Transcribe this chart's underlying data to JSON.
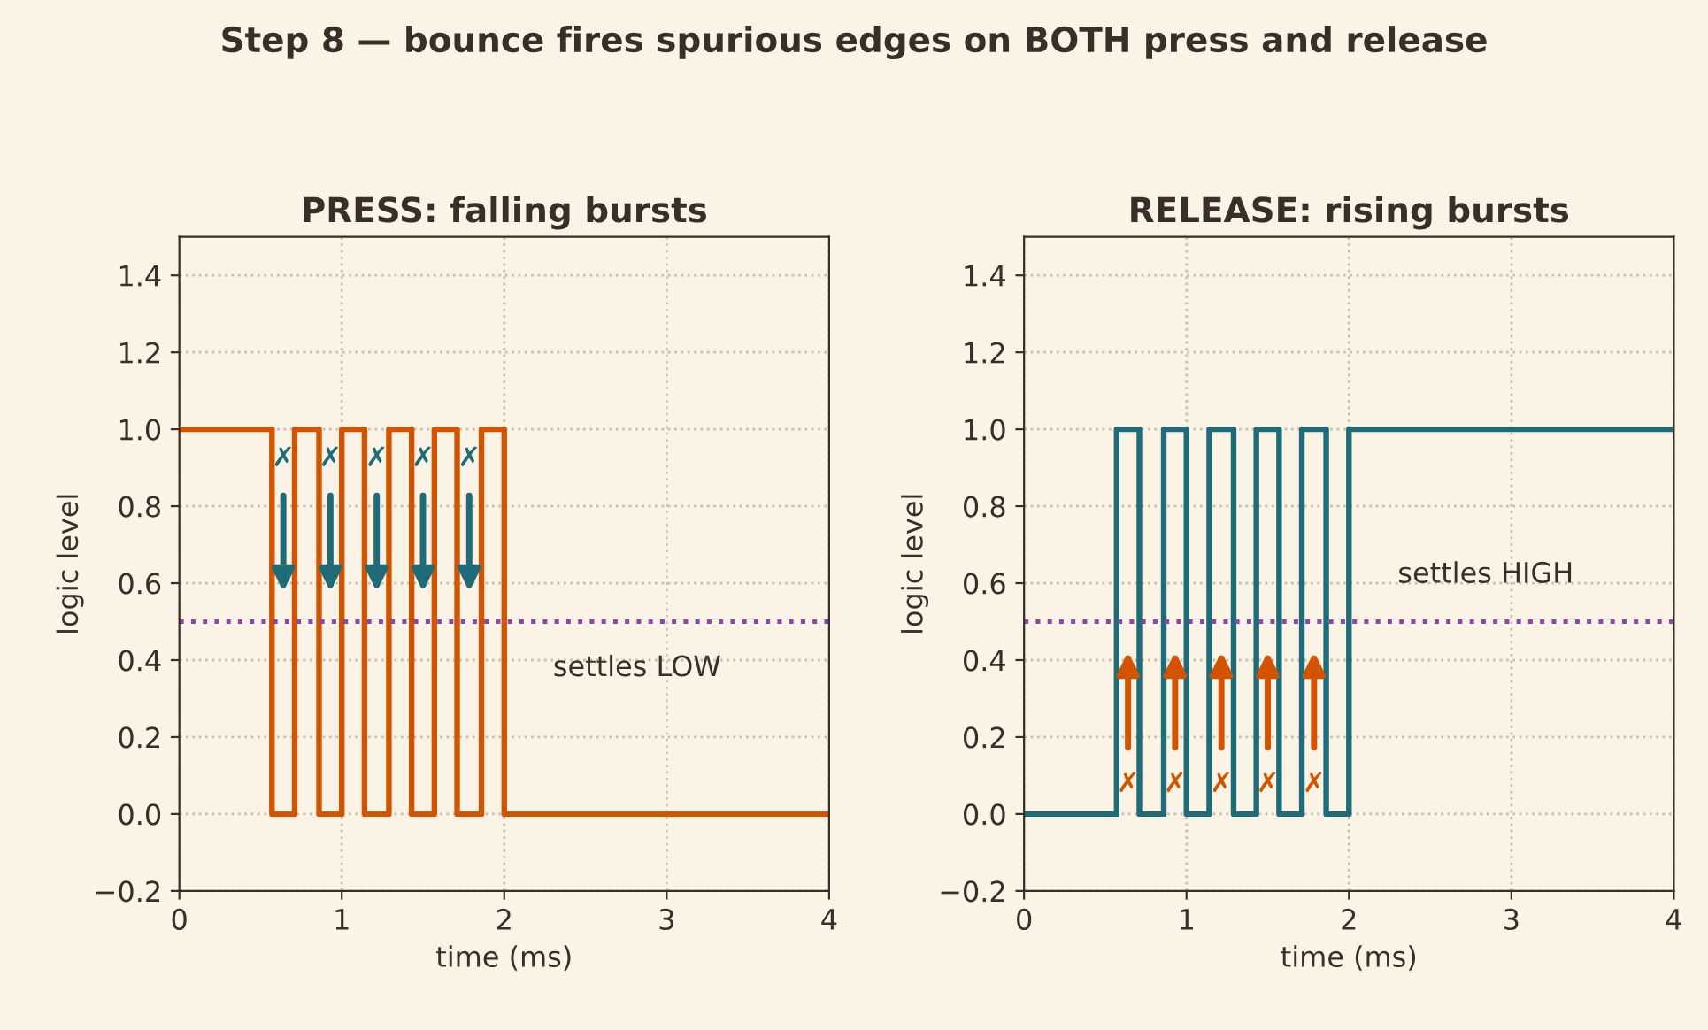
{
  "chart_data": [
    {
      "type": "step",
      "title": "PRESS: falling bursts",
      "xlabel": "time (ms)",
      "ylabel": "logic level",
      "series": [
        {
          "color": "#d35400",
          "x": [
            0,
            0.57,
            0.71,
            0.86,
            1.0,
            1.14,
            1.29,
            1.43,
            1.57,
            1.71,
            1.86,
            2.0,
            4
          ],
          "values": [
            1,
            0,
            1,
            0,
            1,
            0,
            1,
            0,
            1,
            0,
            1,
            0,
            0
          ]
        }
      ],
      "xlim": [
        0,
        4
      ],
      "ylim": [
        -0.2,
        1.5
      ],
      "xticks": [
        0,
        1,
        2,
        3,
        4
      ],
      "yticks": [
        {
          "value": -0.2,
          "label": "−0.2"
        },
        {
          "value": 0,
          "label": "0.0"
        },
        {
          "value": 0.2,
          "label": "0.2"
        },
        {
          "value": 0.4,
          "label": "0.4"
        },
        {
          "value": 0.6,
          "label": "0.6"
        },
        {
          "value": 0.8,
          "label": "0.8"
        },
        {
          "value": 1,
          "label": "1.0"
        },
        {
          "value": 1.2,
          "label": "1.2"
        },
        {
          "value": 1.4,
          "label": "1.4"
        }
      ],
      "grid": true,
      "ref_lines": [
        {
          "axis": "y",
          "value": 0.5,
          "color": "#8e44ad",
          "line_style": "dotted"
        }
      ],
      "annotations": [
        "✗",
        "✗",
        "✗",
        "✗",
        "✗",
        "settles LOW"
      ]
    },
    {
      "type": "step",
      "title": "RELEASE: rising bursts",
      "xlabel": "time (ms)",
      "ylabel": "logic level",
      "series": [
        {
          "color": "#1f6b78",
          "x": [
            0,
            0.57,
            0.71,
            0.86,
            1.0,
            1.14,
            1.29,
            1.43,
            1.57,
            1.71,
            1.86,
            2.0,
            4
          ],
          "values": [
            0,
            1,
            0,
            1,
            0,
            1,
            0,
            1,
            0,
            1,
            0,
            1,
            1
          ]
        }
      ],
      "xlim": [
        0,
        4
      ],
      "ylim": [
        -0.2,
        1.5
      ],
      "xticks": [
        0,
        1,
        2,
        3,
        4
      ],
      "yticks": [
        {
          "value": -0.2,
          "label": "−0.2"
        },
        {
          "value": 0,
          "label": "0.0"
        },
        {
          "value": 0.2,
          "label": "0.2"
        },
        {
          "value": 0.4,
          "label": "0.4"
        },
        {
          "value": 0.6,
          "label": "0.6"
        },
        {
          "value": 0.8,
          "label": "0.8"
        },
        {
          "value": 1,
          "label": "1.0"
        },
        {
          "value": 1.2,
          "label": "1.2"
        },
        {
          "value": 1.4,
          "label": "1.4"
        }
      ],
      "grid": true,
      "ref_lines": [
        {
          "axis": "y",
          "value": 0.5,
          "color": "#8e44ad",
          "line_style": "dotted"
        }
      ],
      "annotations": [
        "✗",
        "✗",
        "✗",
        "✗",
        "✗",
        "settles HIGH"
      ],
      "subtitle": "Step 8 — bounce fires spurious edges on BOTH press and release"
    }
  ]
}
